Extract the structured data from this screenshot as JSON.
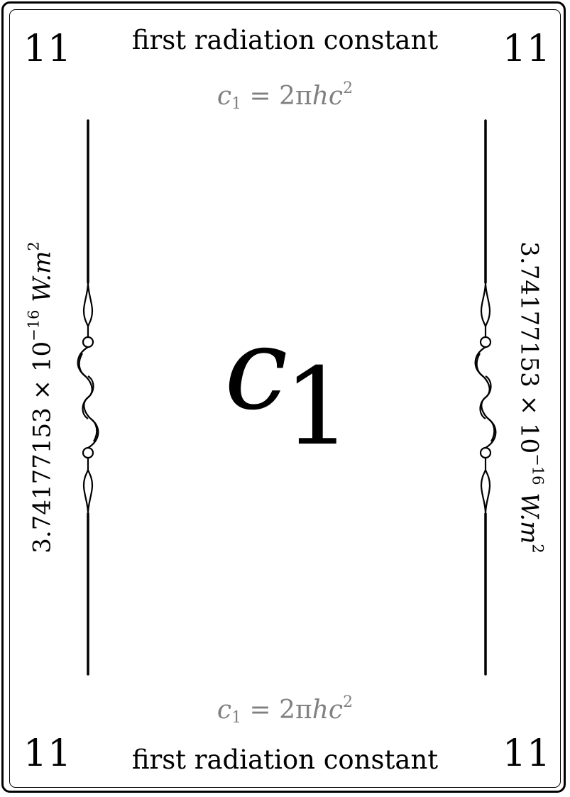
{
  "card": {
    "number": "11",
    "title": "first radiation constant",
    "formula": {
      "lhs_symbol": "c",
      "lhs_subscript": "1",
      "equals": " = 2π",
      "rhs_vars": "hc",
      "rhs_exponent": "2"
    },
    "value": {
      "mantissa": "3.74177153 × 10",
      "exponent": "−16",
      "unit": " W.m",
      "unit_exponent": "2"
    },
    "symbol": {
      "letter": "c",
      "subscript": "1"
    },
    "colors": {
      "ink": "#000000",
      "formula_gray": "#808080"
    }
  }
}
